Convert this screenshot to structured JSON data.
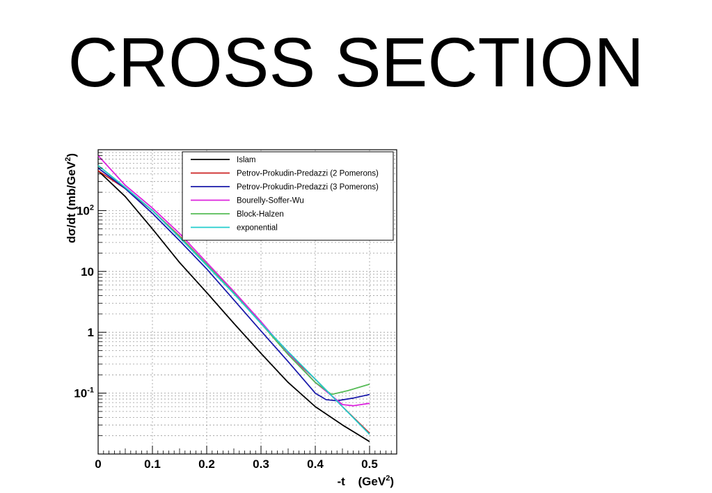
{
  "slide": {
    "title": "CROSS SECTION"
  },
  "chart_data": {
    "type": "line",
    "title": "",
    "xlabel": "-t",
    "xlabel_unit_base": "(GeV",
    "xlabel_unit_exp": "2",
    "xlabel_unit_close": ")",
    "ylabel_base": "dσ/dt   (mb/GeV",
    "ylabel_exp": "2",
    "ylabel_close": ")",
    "xlim": [
      0,
      0.55
    ],
    "ylim": [
      0.01,
      1000
    ],
    "yscale": "log",
    "grid": true,
    "legend_position": "top-right",
    "x_ticks": [
      {
        "value": 0,
        "label": "0"
      },
      {
        "value": 0.1,
        "label": "0.1"
      },
      {
        "value": 0.2,
        "label": "0.2"
      },
      {
        "value": 0.3,
        "label": "0.3"
      },
      {
        "value": 0.4,
        "label": "0.4"
      },
      {
        "value": 0.5,
        "label": "0.5"
      }
    ],
    "y_ticks": [
      {
        "value": 100,
        "base": "10",
        "exp": "2"
      },
      {
        "value": 10,
        "base": "10",
        "exp": ""
      },
      {
        "value": 1,
        "base": "1",
        "exp": ""
      },
      {
        "value": 0.1,
        "base": "10",
        "exp": "-1"
      }
    ],
    "series": [
      {
        "name": "Islam",
        "color": "#000000",
        "x": [
          0,
          0.05,
          0.1,
          0.15,
          0.2,
          0.25,
          0.3,
          0.35,
          0.4,
          0.45,
          0.5
        ],
        "y": [
          450,
          170,
          50,
          14,
          4.5,
          1.4,
          0.45,
          0.15,
          0.06,
          0.03,
          0.016
        ]
      },
      {
        "name": "Petrov-Prokudin-Predazzi (2 Pomerons)",
        "color": "#cc2222",
        "x": [
          0,
          0.05,
          0.1,
          0.15,
          0.2,
          0.25,
          0.3,
          0.35,
          0.4,
          0.45,
          0.5
        ],
        "y": [
          450,
          230,
          100,
          38,
          13,
          4.5,
          1.4,
          0.45,
          0.17,
          0.06,
          0.022
        ]
      },
      {
        "name": "Petrov-Prokudin-Predazzi (3 Pomerons)",
        "color": "#1a1aaa",
        "x": [
          0,
          0.05,
          0.1,
          0.15,
          0.2,
          0.25,
          0.3,
          0.35,
          0.4,
          0.42,
          0.44,
          0.47,
          0.5
        ],
        "y": [
          500,
          230,
          90,
          32,
          11,
          3.4,
          1.05,
          0.33,
          0.1,
          0.078,
          0.075,
          0.083,
          0.095
        ]
      },
      {
        "name": "Bourelly-Soffer-Wu",
        "color": "#dd22dd",
        "x": [
          0,
          0.05,
          0.1,
          0.15,
          0.2,
          0.25,
          0.3,
          0.35,
          0.4,
          0.45,
          0.47,
          0.5
        ],
        "y": [
          800,
          260,
          110,
          42,
          14,
          4.7,
          1.5,
          0.45,
          0.15,
          0.065,
          0.062,
          0.068
        ]
      },
      {
        "name": "Block-Halzen",
        "color": "#55bb55",
        "x": [
          0,
          0.05,
          0.1,
          0.15,
          0.2,
          0.25,
          0.3,
          0.35,
          0.4,
          0.43,
          0.46,
          0.5
        ],
        "y": [
          550,
          240,
          100,
          37,
          13,
          4.4,
          1.4,
          0.43,
          0.15,
          0.095,
          0.11,
          0.14
        ]
      },
      {
        "name": "exponential",
        "color": "#22cccc",
        "x": [
          0,
          0.05,
          0.1,
          0.15,
          0.2,
          0.25,
          0.3,
          0.35,
          0.4,
          0.45,
          0.5
        ],
        "y": [
          550,
          240,
          100,
          36,
          12.5,
          4.3,
          1.4,
          0.48,
          0.17,
          0.06,
          0.021
        ]
      }
    ]
  }
}
